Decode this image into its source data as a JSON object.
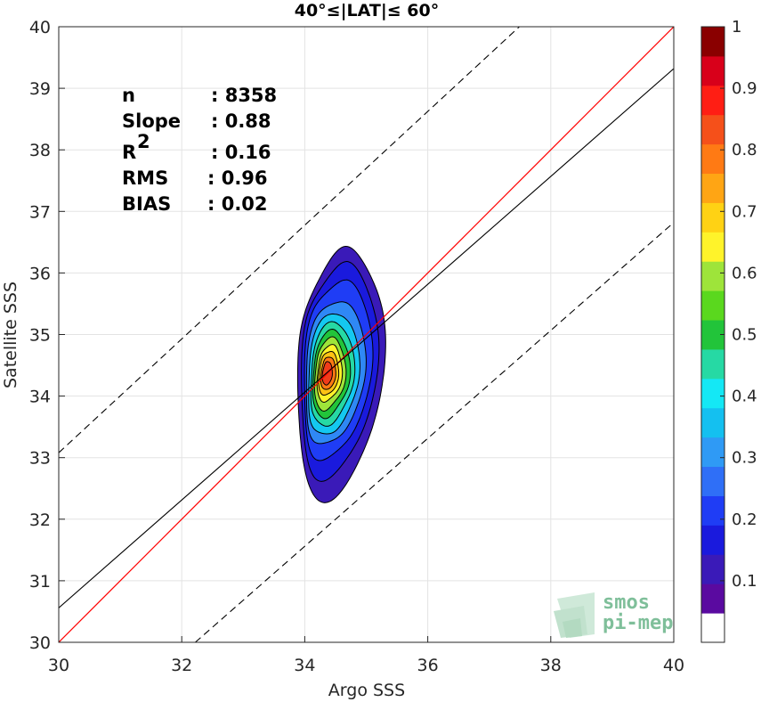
{
  "chart_data": {
    "type": "heatmap",
    "title": "40°≤|LAT|≤ 60°",
    "xlabel": "Argo SSS",
    "ylabel": "Satellite SSS",
    "xlim": [
      30,
      40
    ],
    "ylim": [
      30,
      40
    ],
    "xticks": [
      "30",
      "32",
      "34",
      "36",
      "38",
      "40"
    ],
    "yticks": [
      "30",
      "31",
      "32",
      "33",
      "34",
      "35",
      "36",
      "37",
      "38",
      "39",
      "40"
    ],
    "grid": true,
    "stats": [
      {
        "label": "n",
        "value": ": 8358"
      },
      {
        "label": "Slope",
        "value": ": 0.88"
      },
      {
        "label": "R",
        "sup": "2",
        "value": ": 0.16"
      },
      {
        "label": "RMS",
        "value": ": 0.96"
      },
      {
        "label": "BIAS",
        "value": ": 0.02"
      }
    ],
    "lines": {
      "one_to_one": {
        "intercept": 0,
        "slope": 1,
        "color": "#ff0000"
      },
      "fit": {
        "points": [
          [
            30,
            30.56
          ],
          [
            40,
            39.32
          ]
        ],
        "color": "#000000"
      },
      "upper_bound": {
        "points": [
          [
            30,
            33.08
          ],
          [
            40,
            42.32
          ]
        ],
        "color": "#000000",
        "style": "dashed"
      },
      "lower_bound": {
        "points": [
          [
            32.22,
            30
          ],
          [
            40,
            36.82
          ]
        ],
        "color": "#000000",
        "style": "dashed"
      }
    },
    "density_center": [
      34.38,
      34.36
    ],
    "contour_levels": [
      {
        "level": 0.05,
        "color": "#3a1ab8",
        "rx": 0.7,
        "ry": 2.0,
        "cx": 34.5,
        "cy": 34.35
      },
      {
        "level": 0.1,
        "color": "#1a1add",
        "rx": 0.62,
        "ry": 1.72,
        "cx": 34.48,
        "cy": 34.4
      },
      {
        "level": 0.15,
        "color": "#1f3df5",
        "rx": 0.55,
        "ry": 1.45,
        "cx": 34.46,
        "cy": 34.42
      },
      {
        "level": 0.25,
        "color": "#2f88f5",
        "rx": 0.48,
        "ry": 1.18,
        "cx": 34.43,
        "cy": 34.38
      },
      {
        "level": 0.35,
        "color": "#14c8f0",
        "rx": 0.41,
        "ry": 1.0,
        "cx": 34.41,
        "cy": 34.36
      },
      {
        "level": 0.45,
        "color": "#26d9a4",
        "rx": 0.35,
        "ry": 0.84,
        "cx": 34.4,
        "cy": 34.36
      },
      {
        "level": 0.5,
        "color": "#22c43a",
        "rx": 0.3,
        "ry": 0.7,
        "cx": 34.39,
        "cy": 34.36
      },
      {
        "level": 0.6,
        "color": "#9ee43a",
        "rx": 0.25,
        "ry": 0.58,
        "cx": 34.38,
        "cy": 34.36
      },
      {
        "level": 0.65,
        "color": "#fff32a",
        "rx": 0.2,
        "ry": 0.46,
        "cx": 34.38,
        "cy": 34.37
      },
      {
        "level": 0.7,
        "color": "#ffc214",
        "rx": 0.16,
        "ry": 0.36,
        "cx": 34.37,
        "cy": 34.37
      },
      {
        "level": 0.8,
        "color": "#ff7a14",
        "rx": 0.12,
        "ry": 0.27,
        "cx": 34.37,
        "cy": 34.37
      },
      {
        "level": 0.85,
        "color": "#f03c1a",
        "rx": 0.08,
        "ry": 0.19,
        "cx": 34.36,
        "cy": 34.37
      }
    ],
    "colorbar": {
      "ticks": [
        "0.1",
        "0.2",
        "0.3",
        "0.4",
        "0.5",
        "0.6",
        "0.7",
        "0.8",
        "0.9",
        "1"
      ],
      "colors": [
        "#ffffff",
        "#5a0aa0",
        "#3a1ab8",
        "#1a1add",
        "#1f3df5",
        "#2f6ff7",
        "#2f9af5",
        "#14c0f0",
        "#14e8f5",
        "#26d9a4",
        "#22c43a",
        "#5ad81e",
        "#9ee43a",
        "#fff32a",
        "#ffd214",
        "#ffa514",
        "#ff7a14",
        "#f5501a",
        "#ff1e14",
        "#d8001a",
        "#8a0000"
      ]
    }
  },
  "logo": {
    "line1": "smos",
    "line2": "pi-mep"
  }
}
